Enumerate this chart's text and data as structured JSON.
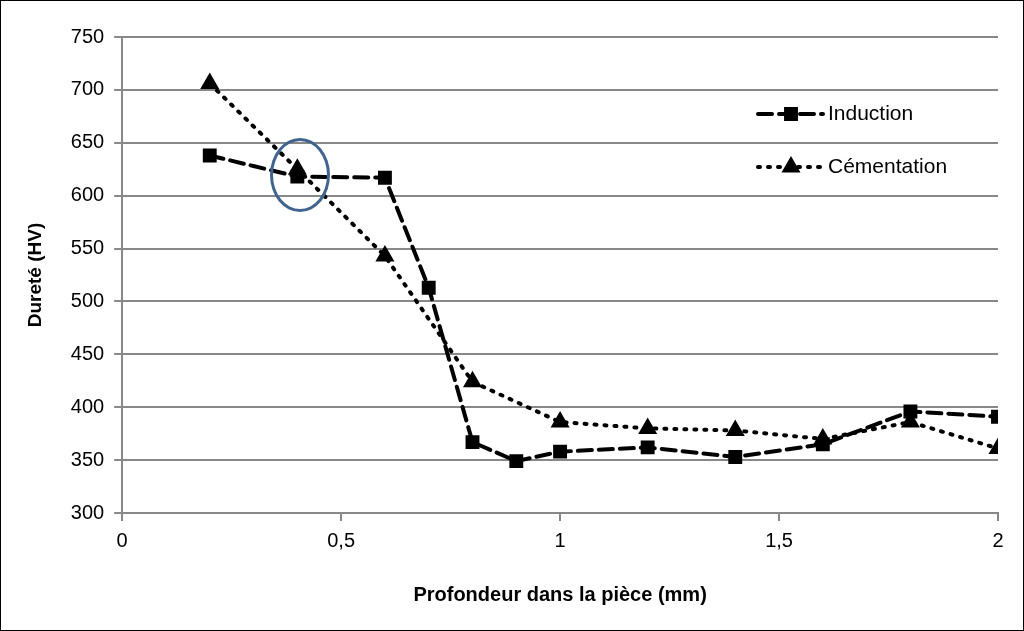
{
  "chart_data": {
    "type": "line",
    "xlabel": "Profondeur dans la pièce (mm)",
    "ylabel": "Dureté (HV)",
    "x": [
      0.2,
      0.4,
      0.6,
      0.7,
      0.8,
      0.9,
      1.0,
      1.2,
      1.4,
      1.6,
      1.8,
      2.0
    ],
    "series": [
      {
        "name": "Induction",
        "color": "#000000",
        "marker": "square",
        "line_style": "dashed",
        "values": [
          638,
          618,
          617,
          513,
          367,
          349,
          358,
          362,
          353,
          365,
          396,
          391
        ]
      },
      {
        "name": "Cémentation",
        "color": "#000000",
        "marker": "triangle",
        "line_style": "dotted",
        "values": [
          706,
          625,
          543,
          null,
          424,
          null,
          386,
          380,
          378,
          370,
          386,
          361
        ]
      }
    ],
    "xlim": [
      0,
      2
    ],
    "xticks": [
      0,
      {
        "value": 0.5,
        "label": "0,5"
      },
      1,
      {
        "value": 1.5,
        "label": "1,5"
      },
      2
    ],
    "ylim": [
      300,
      750
    ],
    "yticks": [
      300,
      350,
      400,
      450,
      500,
      550,
      600,
      650,
      700,
      750
    ],
    "grid": "y",
    "legend": "top right"
  }
}
